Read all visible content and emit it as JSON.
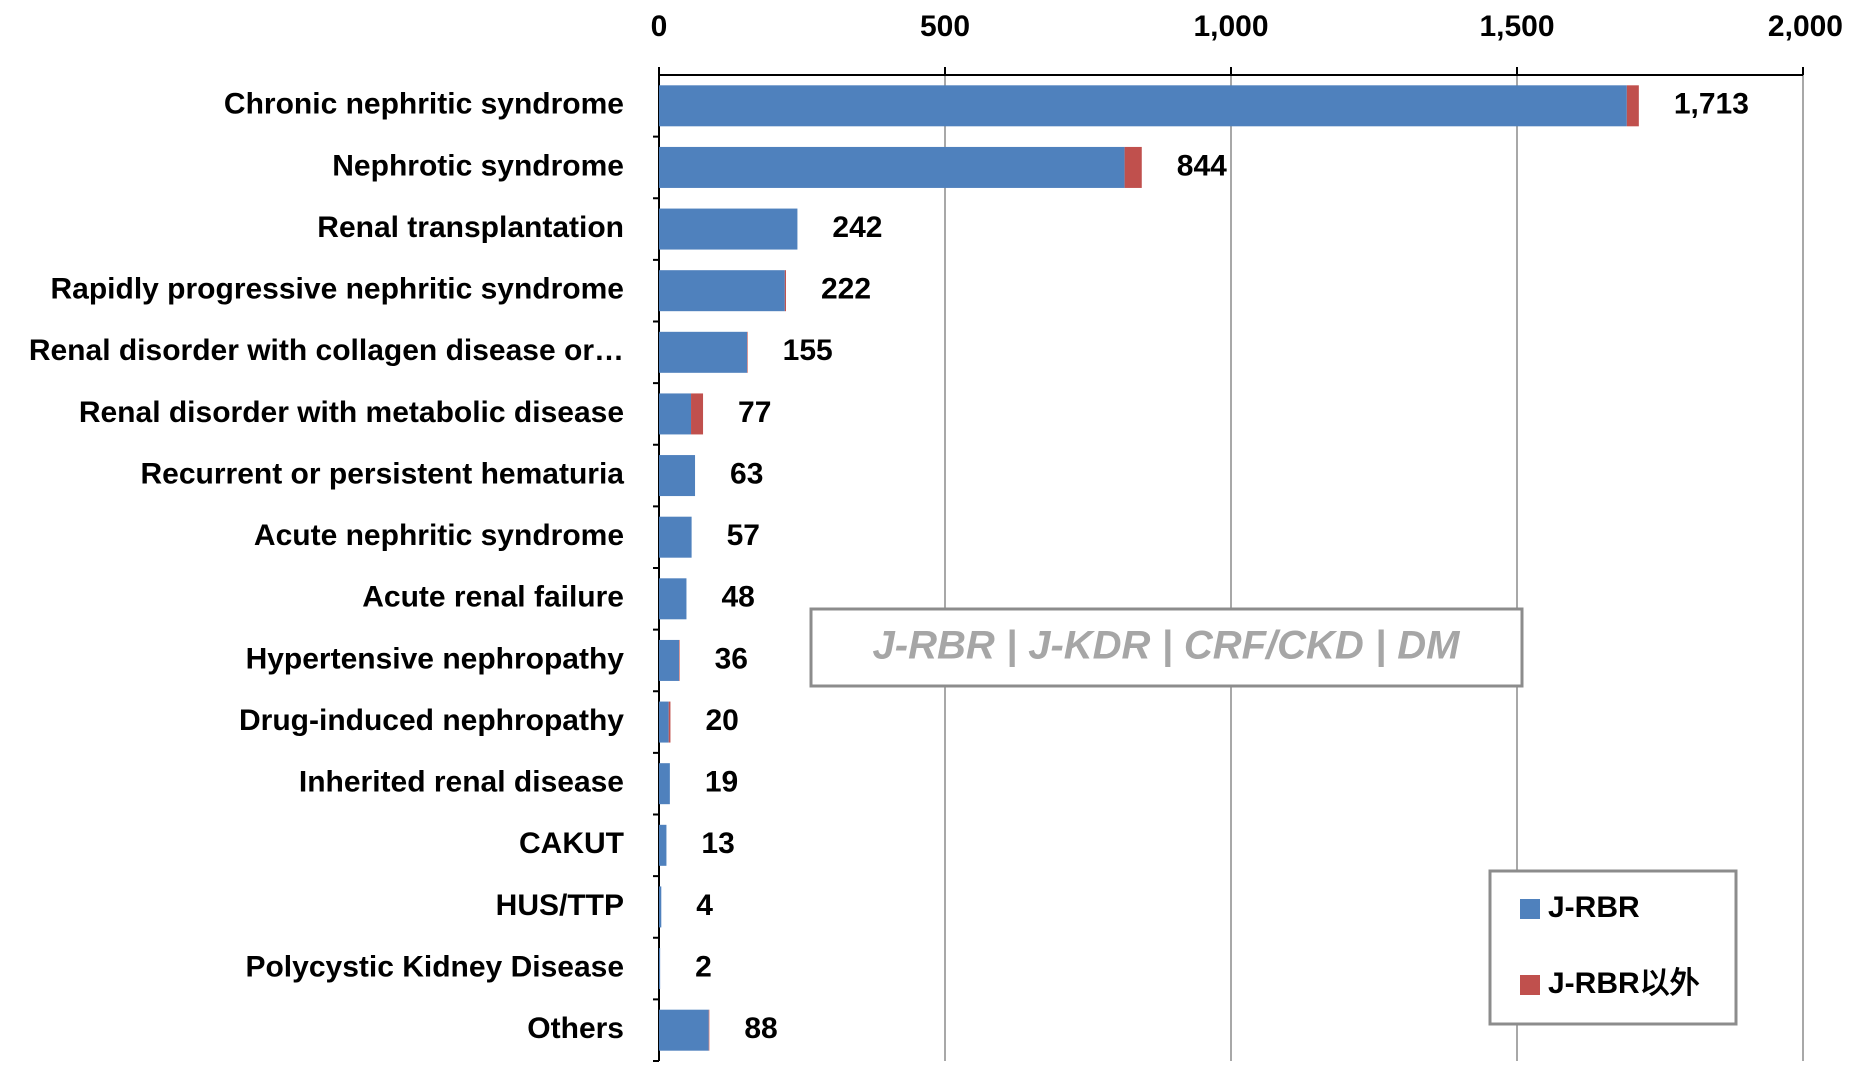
{
  "chart_data": {
    "type": "stacked-barh",
    "categories": [
      "Chronic nephritic syndrome",
      "Nephrotic syndrome",
      "Renal transplantation",
      "Rapidly progressive nephritic syndrome",
      "Renal disorder with collagen disease or…",
      "Renal disorder with metabolic disease",
      "Recurrent or persistent hematuria",
      "Acute nephritic syndrome",
      "Acute renal failure",
      "Hypertensive nephropathy",
      "Drug-induced nephropathy",
      "Inherited renal disease",
      "CAKUT",
      "HUS/TTP",
      "Polycystic Kidney Disease",
      "Others"
    ],
    "series": [
      {
        "name": "J-RBR",
        "color": "#4f81bd",
        "values": [
          1692,
          814,
          242,
          220,
          154,
          56,
          63,
          57,
          48,
          35,
          17,
          19,
          13,
          4,
          2,
          87
        ]
      },
      {
        "name": "J-RBR以外",
        "color": "#c0504d",
        "values": [
          21,
          30,
          0,
          2,
          1,
          21,
          0,
          0,
          0,
          1,
          3,
          0,
          0,
          0,
          0,
          1
        ]
      }
    ],
    "value_labels": [
      "1,713",
      "844",
      "242",
      "222",
      "155",
      "77",
      "63",
      "57",
      "48",
      "36",
      "20",
      "19",
      "13",
      "4",
      "2",
      "88"
    ],
    "xlim": [
      0,
      2000
    ],
    "xticks": [
      0,
      500,
      {
        "value": 1000,
        "label": "1,000"
      },
      {
        "value": 1500,
        "label": "1,500"
      },
      {
        "value": 2000,
        "label": "2,000"
      }
    ],
    "grid": true,
    "legend": "lower right",
    "annotation": "J-RBR | J-KDR | CRF/CKD | DM"
  }
}
